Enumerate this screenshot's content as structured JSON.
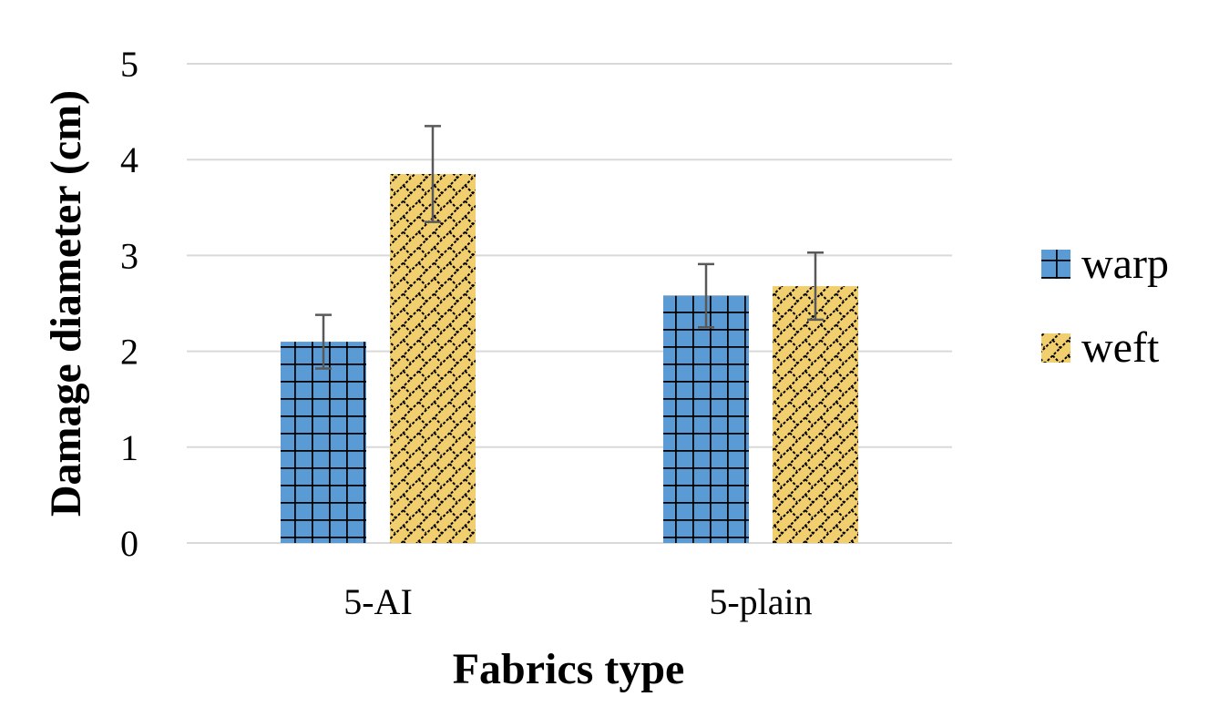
{
  "chart_data": {
    "type": "bar",
    "title": "",
    "xlabel": "Fabrics type",
    "ylabel": "Damage diameter (cm)",
    "categories": [
      "5-AI",
      "5-plain"
    ],
    "series": [
      {
        "name": "warp",
        "values": [
          2.1,
          2.58
        ],
        "errors": [
          0.28,
          0.33
        ],
        "color": "#5b9bd5",
        "pattern": "grid"
      },
      {
        "name": "weft",
        "values": [
          3.85,
          2.68
        ],
        "errors": [
          0.5,
          0.35
        ],
        "color": "#f2cf6e",
        "pattern": "diagonal-brick"
      }
    ],
    "ylim": [
      0,
      5
    ],
    "yticks": [
      0,
      1,
      2,
      3,
      4,
      5
    ],
    "grid": true,
    "legend": "right"
  }
}
